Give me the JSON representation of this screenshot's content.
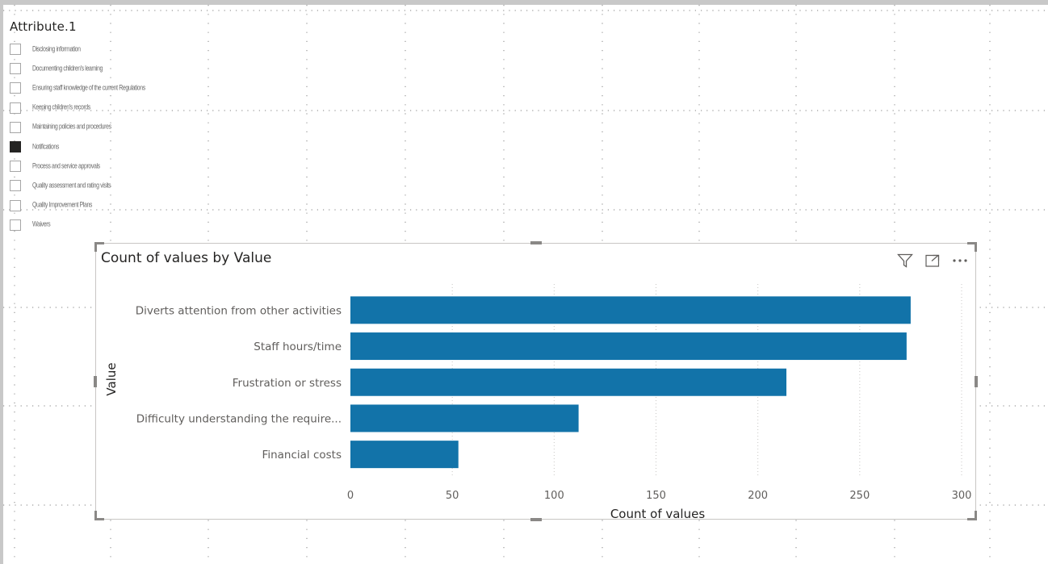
{
  "slicer": {
    "title": "Attribute.1",
    "items": [
      {
        "label": "Disclosing information",
        "checked": false
      },
      {
        "label": "Documenting children's learning",
        "checked": false
      },
      {
        "label": "Ensuring staff knowledge of the current Regulations",
        "checked": false
      },
      {
        "label": "Keeping children's records",
        "checked": false
      },
      {
        "label": "Maintaining policies and procedures",
        "checked": false
      },
      {
        "label": "Notifications",
        "checked": true
      },
      {
        "label": "Process and service approvals",
        "checked": false
      },
      {
        "label": "Quality assessment and rating visits",
        "checked": false
      },
      {
        "label": "Quality Improvement Plans",
        "checked": false
      },
      {
        "label": "Waivers",
        "checked": false
      }
    ]
  },
  "visual": {
    "title": "Count of values by Value",
    "icons": [
      "filter-icon",
      "focus-mode-icon",
      "more-options-icon"
    ]
  },
  "chart_data": {
    "type": "bar",
    "orientation": "horizontal",
    "title": "Count of values by Value",
    "xlabel": "Count of values",
    "ylabel": "Value",
    "categories": [
      "Diverts attention from other activities",
      "Staff hours/time",
      "Frustration or stress",
      "Difficulty understanding the require...",
      "Financial costs"
    ],
    "values": [
      275,
      273,
      214,
      112,
      53
    ],
    "xlim": [
      0,
      300
    ],
    "xticks": [
      0,
      50,
      100,
      150,
      200,
      250,
      300
    ],
    "grid": true,
    "color": "#1273a9"
  }
}
